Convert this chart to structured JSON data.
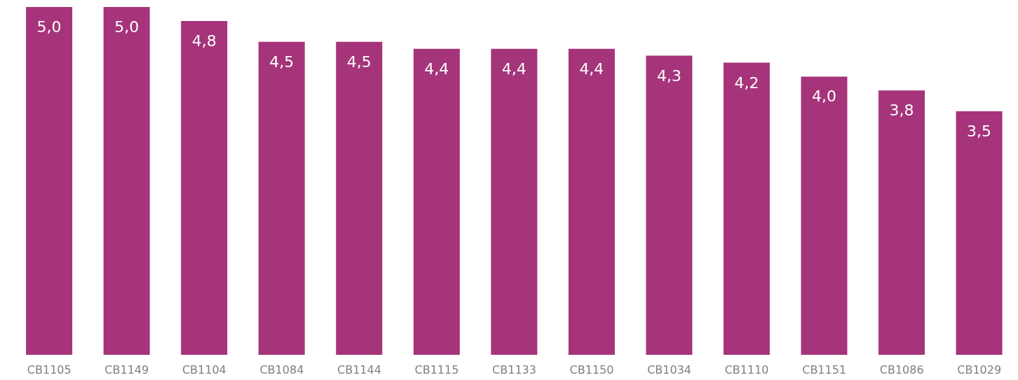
{
  "chart_data": {
    "type": "bar",
    "categories": [
      "CB1105",
      "CB1149",
      "CB1104",
      "CB1084",
      "CB1144",
      "CB1115",
      "CB1133",
      "CB1150",
      "CB1034",
      "CB1110",
      "CB1151",
      "CB1086",
      "CB1029"
    ],
    "values": [
      5.0,
      5.0,
      4.8,
      4.5,
      4.5,
      4.4,
      4.4,
      4.4,
      4.3,
      4.2,
      4.0,
      3.8,
      3.5
    ],
    "value_labels": [
      "5,0",
      "5,0",
      "4,8",
      "4,5",
      "4,5",
      "4,4",
      "4,4",
      "4,4",
      "4,3",
      "4,2",
      "4,0",
      "3,8",
      "3,5"
    ],
    "color": "#a5347a"
  }
}
